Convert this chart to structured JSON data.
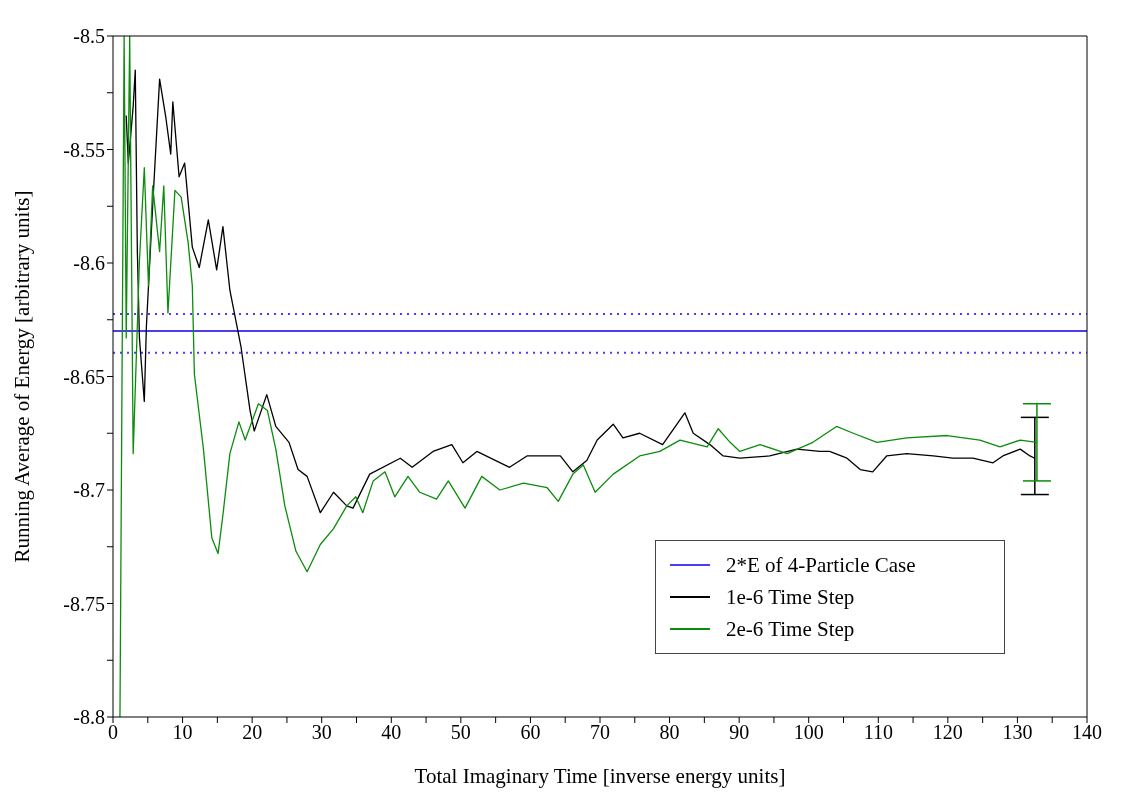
{
  "chart_data": {
    "type": "line",
    "xlabel": "Total Imaginary Time [inverse energy units]",
    "ylabel": "Running Average of Energy [arbitrary units]",
    "xlim": [
      0,
      140
    ],
    "xticks": [
      0,
      {
        "value": 5,
        "label": null
      },
      10,
      {
        "value": 15,
        "label": null
      },
      20,
      {
        "value": 25,
        "label": null
      },
      30,
      {
        "value": 35,
        "label": null
      },
      40,
      {
        "value": 45,
        "label": null
      },
      50,
      {
        "value": 55,
        "label": null
      },
      60,
      {
        "value": 65,
        "label": null
      },
      70,
      {
        "value": 75,
        "label": null
      },
      80,
      {
        "value": 85,
        "label": null
      },
      90,
      {
        "value": 95,
        "label": null
      },
      100,
      {
        "value": 105,
        "label": null
      },
      110,
      {
        "value": 115,
        "label": null
      },
      120,
      {
        "value": 125,
        "label": null
      },
      130,
      {
        "value": 135,
        "label": null
      },
      140
    ],
    "ylim": [
      -8.8,
      -8.5
    ],
    "yticks": [
      -8.8,
      {
        "value": -8.775,
        "label": null
      },
      -8.75,
      {
        "value": -8.725,
        "label": null
      },
      -8.7,
      {
        "value": -8.675,
        "label": null
      },
      -8.65,
      {
        "value": -8.625,
        "label": null
      },
      -8.6,
      {
        "value": -8.575,
        "label": null
      },
      -8.55,
      {
        "value": -8.525,
        "label": null
      },
      -8.5
    ],
    "legend": "bottom right",
    "grid": false,
    "marker": "none",
    "ref_lines": [
      {
        "axis": "y",
        "value": -8.6225,
        "color": "#4b3cf5",
        "line_style": "dotted"
      },
      {
        "axis": "y",
        "value": -8.6395,
        "color": "#4b3cf5",
        "line_style": "dotted"
      }
    ],
    "series": [
      {
        "name": "2*E of 4-Particle Case",
        "color": "#4b3cf5",
        "x": [
          0,
          140
        ],
        "values": [
          -8.63,
          -8.63
        ]
      },
      {
        "name": "1e-6 Time Step",
        "color": "#000000",
        "x": [
          1.9,
          2.2,
          2.9,
          3.2,
          3.5,
          3.8,
          4.5,
          4.8,
          5.7,
          6.7,
          7.6,
          8.3,
          8.6,
          9.5,
          10.3,
          11.4,
          12.4,
          13.7,
          14.9,
          15.8,
          16.8,
          18.4,
          19.7,
          20.3,
          22.1,
          23.4,
          25.3,
          26.6,
          27.9,
          29.8,
          31.7,
          33.6,
          34.5,
          36.9,
          41.3,
          43,
          46,
          48.7,
          50.3,
          52.3,
          57,
          59.5,
          64.3,
          66.1,
          68.1,
          69.6,
          71.9,
          73.3,
          75.7,
          79,
          82.2,
          83.4,
          85.8,
          87.7,
          90.1,
          94.4,
          98.3,
          101.6,
          103,
          105.5,
          107.4,
          109.2,
          111.2,
          114.1,
          117.9,
          120.7,
          123.6,
          126.5,
          127.9,
          130.4,
          131.8,
          132.5
        ],
        "values": [
          -8.535,
          -8.556,
          -8.531,
          -8.515,
          -8.595,
          -8.633,
          -8.661,
          -8.628,
          -8.575,
          -8.519,
          -8.536,
          -8.552,
          -8.529,
          -8.562,
          -8.556,
          -8.593,
          -8.602,
          -8.581,
          -8.603,
          -8.584,
          -8.612,
          -8.637,
          -8.665,
          -8.674,
          -8.658,
          -8.672,
          -8.679,
          -8.691,
          -8.694,
          -8.71,
          -8.701,
          -8.707,
          -8.708,
          -8.693,
          -8.686,
          -8.69,
          -8.683,
          -8.68,
          -8.688,
          -8.683,
          -8.69,
          -8.685,
          -8.685,
          -8.692,
          -8.687,
          -8.678,
          -8.671,
          -8.677,
          -8.675,
          -8.68,
          -8.666,
          -8.675,
          -8.68,
          -8.685,
          -8.686,
          -8.685,
          -8.682,
          -8.683,
          -8.683,
          -8.686,
          -8.691,
          -8.692,
          -8.685,
          -8.684,
          -8.685,
          -8.686,
          -8.686,
          -8.688,
          -8.685,
          -8.682,
          -8.685,
          -8.686
        ],
        "errors": [
          null,
          null,
          null,
          null,
          null,
          null,
          null,
          null,
          null,
          null,
          null,
          null,
          null,
          null,
          null,
          null,
          null,
          null,
          null,
          null,
          null,
          null,
          null,
          null,
          null,
          null,
          null,
          null,
          null,
          null,
          null,
          null,
          null,
          null,
          null,
          null,
          null,
          null,
          null,
          null,
          null,
          null,
          null,
          null,
          null,
          null,
          null,
          null,
          null,
          null,
          null,
          null,
          null,
          null,
          null,
          null,
          null,
          null,
          null,
          null,
          null,
          null,
          null,
          null,
          null,
          null,
          null,
          null,
          null,
          null,
          null,
          [
            -8.702,
            -8.668
          ]
        ]
      },
      {
        "name": "2e-6 Time Step",
        "color": "#0c8c0c",
        "x": [
          1,
          1.6,
          1.9,
          2.4,
          2.9,
          3.8,
          4.5,
          5.1,
          5.7,
          6.7,
          7.3,
          7.9,
          8.9,
          9.8,
          10.8,
          11.4,
          11.7,
          13,
          14.2,
          15.1,
          15.8,
          16.8,
          18.1,
          19,
          20.9,
          22.2,
          23.4,
          24.7,
          26.3,
          27.9,
          29.8,
          31.7,
          33.6,
          34.9,
          35.9,
          37.4,
          39.1,
          40.5,
          42.4,
          44.1,
          46.5,
          48.2,
          50.6,
          53,
          55.6,
          59,
          62.4,
          64,
          66.1,
          67.6,
          69.3,
          71.9,
          75.7,
          78.6,
          81.5,
          85.4,
          87,
          88.7,
          90.1,
          93,
          96.9,
          100.6,
          104,
          106.4,
          109.8,
          114.1,
          119.9,
          124.6,
          127.5,
          130.4,
          132.8
        ],
        "values": [
          -8.8,
          -8.5,
          -8.633,
          -8.5,
          -8.684,
          -8.599,
          -8.558,
          -8.61,
          -8.566,
          -8.595,
          -8.566,
          -8.622,
          -8.568,
          -8.571,
          -8.591,
          -8.61,
          -8.649,
          -8.682,
          -8.721,
          -8.728,
          -8.711,
          -8.684,
          -8.67,
          -8.678,
          -8.662,
          -8.665,
          -8.682,
          -8.707,
          -8.727,
          -8.736,
          -8.724,
          -8.717,
          -8.707,
          -8.703,
          -8.71,
          -8.696,
          -8.692,
          -8.703,
          -8.694,
          -8.701,
          -8.704,
          -8.696,
          -8.708,
          -8.694,
          -8.7,
          -8.697,
          -8.699,
          -8.705,
          -8.693,
          -8.689,
          -8.701,
          -8.693,
          -8.685,
          -8.683,
          -8.678,
          -8.681,
          -8.673,
          -8.679,
          -8.683,
          -8.68,
          -8.684,
          -8.679,
          -8.672,
          -8.675,
          -8.679,
          -8.677,
          -8.676,
          -8.678,
          -8.681,
          -8.678,
          -8.679
        ],
        "errors": [
          null,
          null,
          null,
          null,
          null,
          null,
          null,
          null,
          null,
          null,
          null,
          null,
          null,
          null,
          null,
          null,
          null,
          null,
          null,
          null,
          null,
          null,
          null,
          null,
          null,
          null,
          null,
          null,
          null,
          null,
          null,
          null,
          null,
          null,
          null,
          null,
          null,
          null,
          null,
          null,
          null,
          null,
          null,
          null,
          null,
          null,
          null,
          null,
          null,
          null,
          null,
          null,
          null,
          null,
          null,
          null,
          null,
          null,
          null,
          null,
          null,
          null,
          null,
          null,
          null,
          null,
          null,
          null,
          null,
          null,
          [
            -8.696,
            -8.662
          ]
        ]
      }
    ]
  }
}
